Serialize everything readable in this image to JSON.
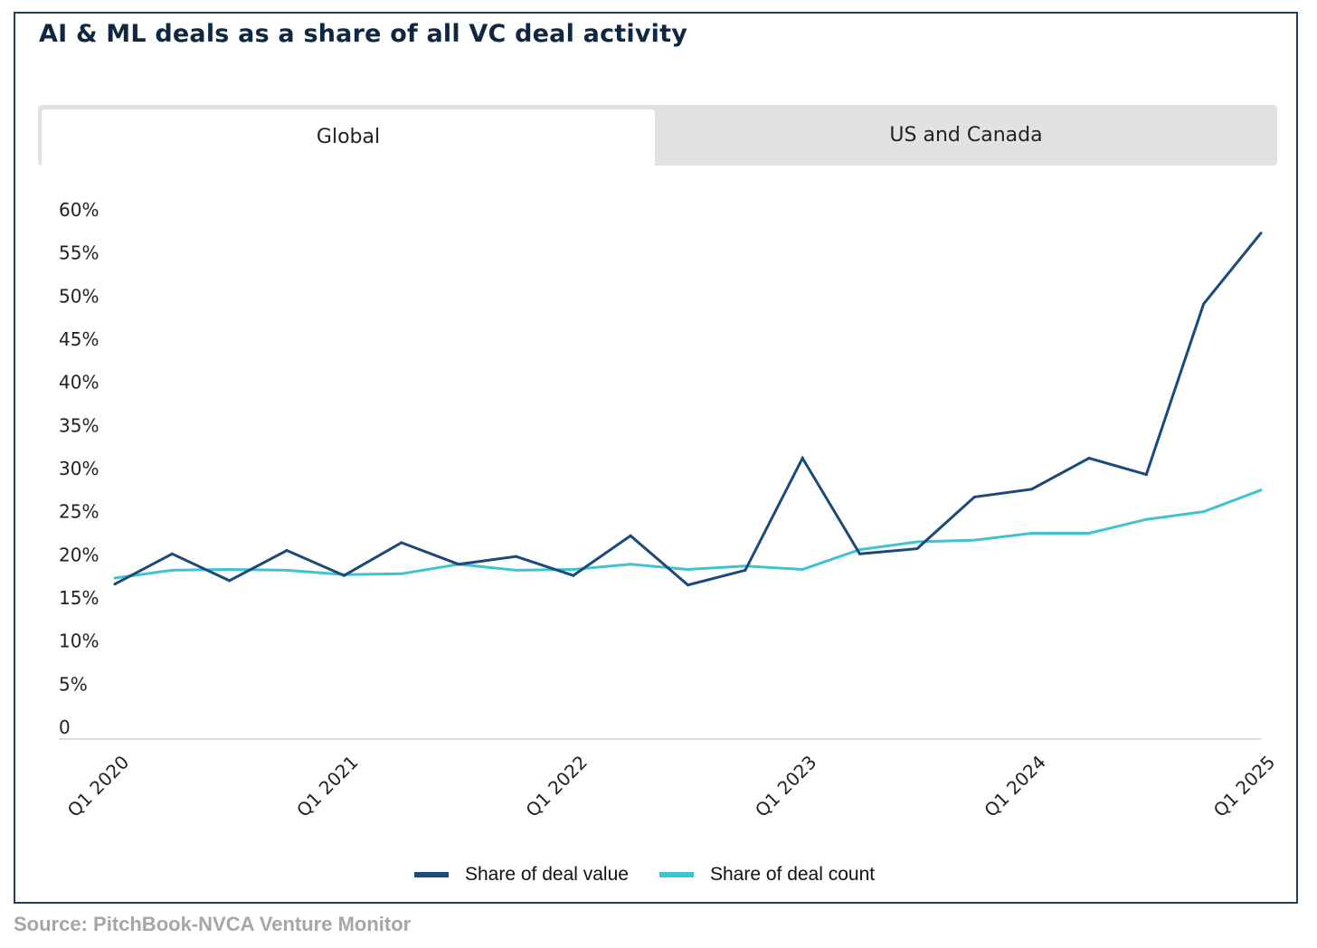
{
  "title": "AI & ML deals as a share of all VC deal activity",
  "tabs": [
    {
      "label": "Global",
      "selected": true
    },
    {
      "label": "US and Canada",
      "selected": false
    }
  ],
  "source": "Source: PitchBook-NVCA Venture Monitor",
  "colors": {
    "deal_value": "#1b4a7a",
    "deal_count": "#3ec3cf",
    "frame": "#1d3f60",
    "tab_bar": "#e2e2e2"
  },
  "chart_data": {
    "type": "line",
    "ylim": [
      0,
      60
    ],
    "yticks": [
      "0",
      "5%",
      "10%",
      "15%",
      "20%",
      "25%",
      "30%",
      "35%",
      "40%",
      "45%",
      "50%",
      "55%",
      "60%"
    ],
    "ytick_values": [
      0,
      5,
      10,
      15,
      20,
      25,
      30,
      35,
      40,
      45,
      50,
      55,
      60
    ],
    "x": [
      "Q1 2020",
      "Q2 2020",
      "Q3 2020",
      "Q4 2020",
      "Q1 2021",
      "Q2 2021",
      "Q3 2021",
      "Q4 2021",
      "Q1 2022",
      "Q2 2022",
      "Q3 2022",
      "Q4 2022",
      "Q1 2023",
      "Q2 2023",
      "Q3 2023",
      "Q4 2023",
      "Q1 2024",
      "Q2 2024",
      "Q3 2024",
      "Q4 2024",
      "Q1 2025"
    ],
    "xtick_labels": [
      "Q1 2020",
      "Q1 2021",
      "Q1 2022",
      "Q1 2023",
      "Q1 2024",
      "Q1 2025"
    ],
    "xtick_indices": [
      0,
      4,
      8,
      12,
      16,
      20
    ],
    "grid": false,
    "legend_position": "bottom-center",
    "series": [
      {
        "name": "Share of deal value",
        "values": [
          16.5,
          20.0,
          16.9,
          20.4,
          17.5,
          21.3,
          18.8,
          19.7,
          17.5,
          22.1,
          16.4,
          18.1,
          31.1,
          20.0,
          20.6,
          26.6,
          27.5,
          31.1,
          29.2,
          49.0,
          57.2
        ]
      },
      {
        "name": "Share of deal count",
        "values": [
          17.2,
          18.1,
          18.2,
          18.1,
          17.6,
          17.7,
          18.8,
          18.1,
          18.2,
          18.8,
          18.2,
          18.6,
          18.2,
          20.5,
          21.4,
          21.6,
          22.4,
          22.4,
          24.0,
          24.9,
          27.4
        ]
      }
    ]
  }
}
